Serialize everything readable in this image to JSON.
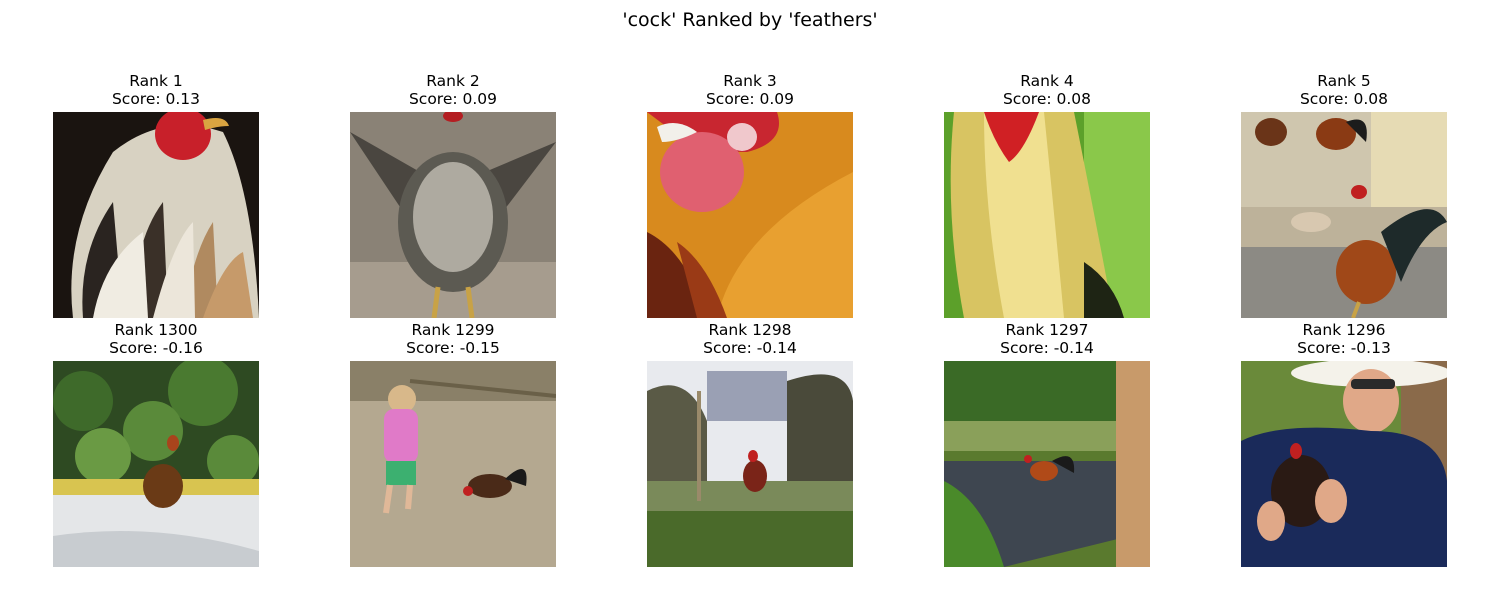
{
  "title": "'cock' Ranked by 'feathers'",
  "panels": [
    {
      "rank": "Rank 1",
      "score": "Score: 0.13",
      "image": "rooster-closeup-white-black-feathers"
    },
    {
      "rank": "Rank 2",
      "score": "Score: 0.09",
      "image": "speckled-hen-wings-spread"
    },
    {
      "rank": "Rank 3",
      "score": "Score: 0.09",
      "image": "rooster-red-comb-orange-feathers"
    },
    {
      "rank": "Rank 4",
      "score": "Score: 0.08",
      "image": "rooster-yellow-hackle-feathers"
    },
    {
      "rank": "Rank 5",
      "score": "Score: 0.08",
      "image": "roosters-on-pavement"
    },
    {
      "rank": "Rank 1300",
      "score": "Score: -0.16",
      "image": "rooster-in-garden"
    },
    {
      "rank": "Rank 1299",
      "score": "Score: -0.15",
      "image": "child-and-rooster-on-dirt"
    },
    {
      "rank": "Rank 1298",
      "score": "Score: -0.14",
      "image": "rooster-by-fence-in-bushes"
    },
    {
      "rank": "Rank 1297",
      "score": "Score: -0.14",
      "image": "rooster-on-road-near-palm"
    },
    {
      "rank": "Rank 1296",
      "score": "Score: -0.13",
      "image": "man-holding-rooster"
    }
  ]
}
